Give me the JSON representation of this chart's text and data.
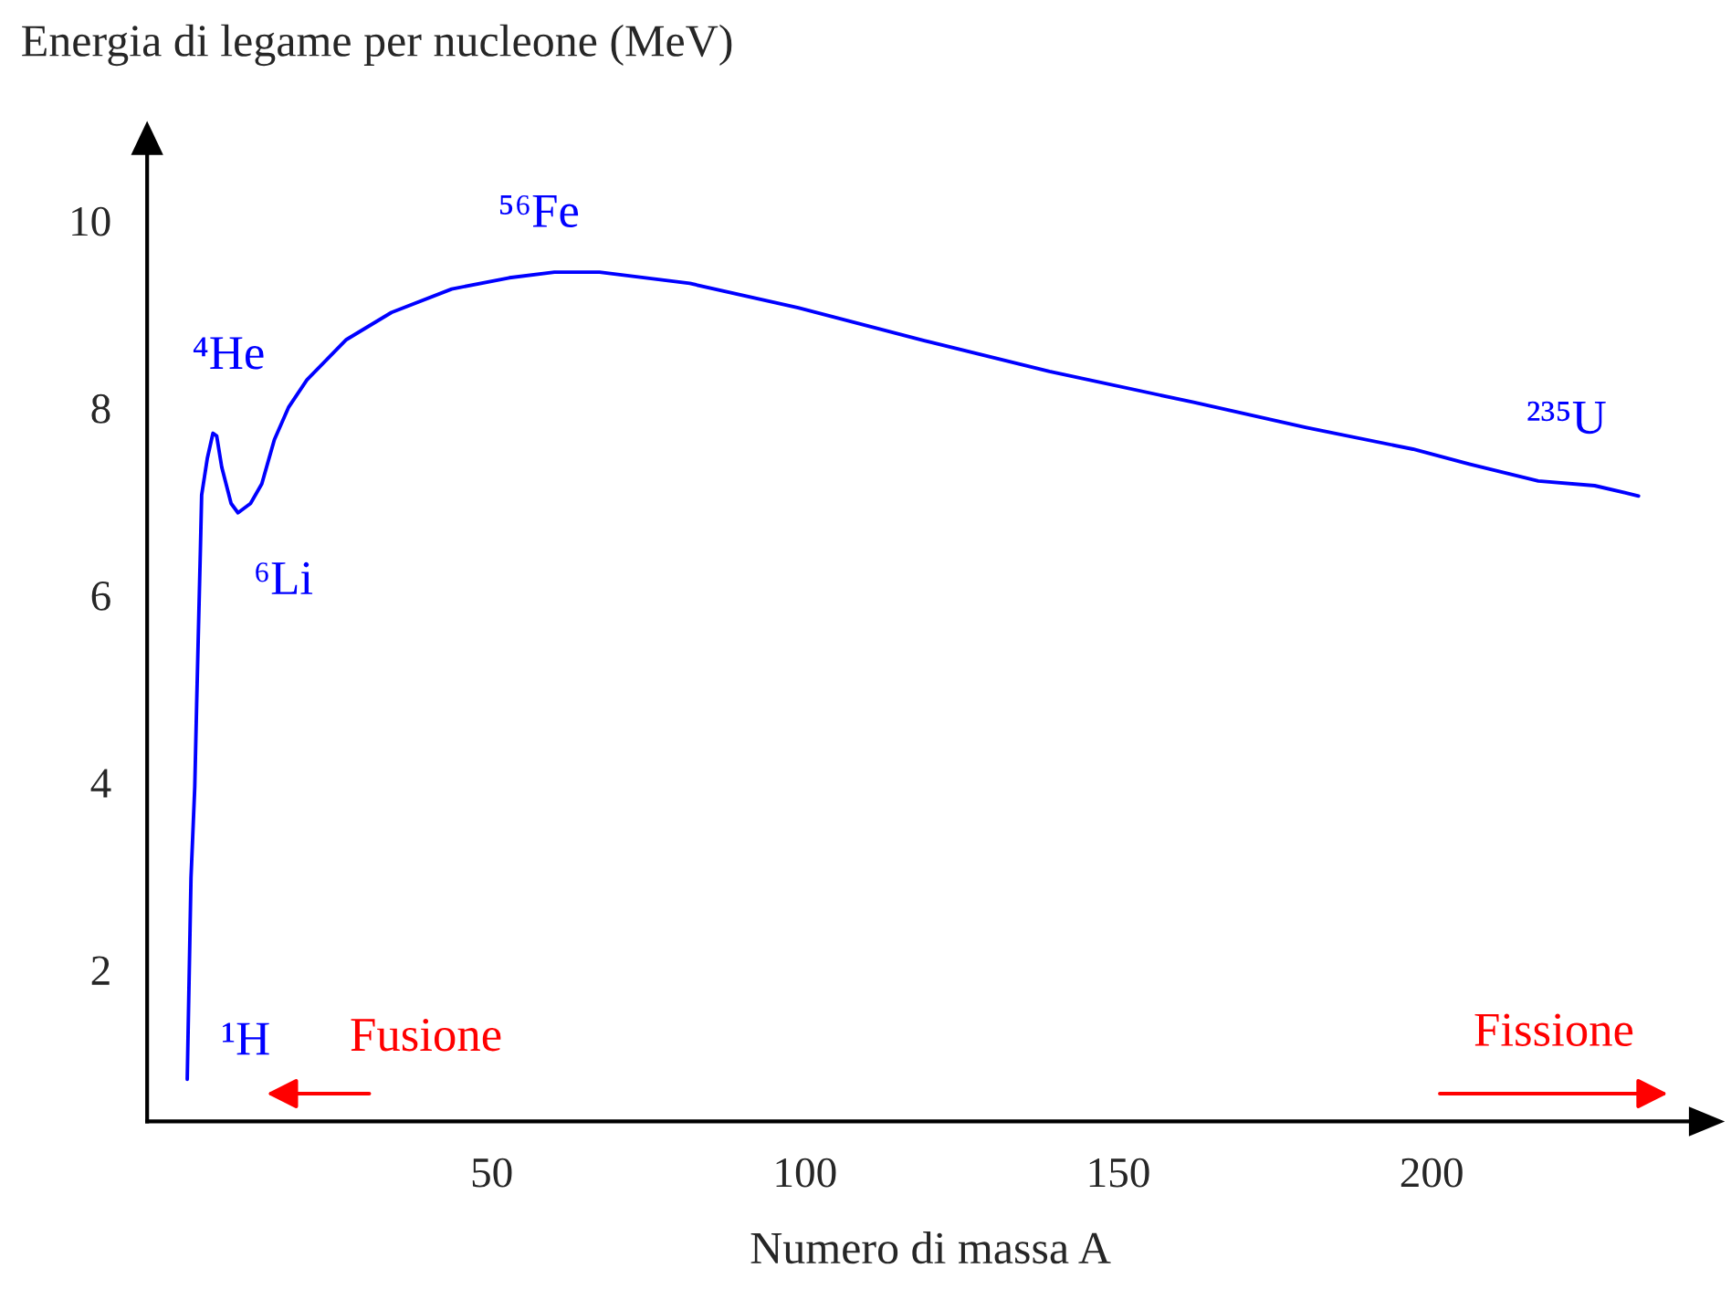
{
  "chart_data": {
    "type": "line",
    "xlabel": "Numero di massa A",
    "ylabel": "Energia di legame per nucleone (MeV)",
    "xlim": [
      -5,
      245
    ],
    "ylim": [
      0.38,
      10.98
    ],
    "xticks": [
      50,
      100,
      150,
      200
    ],
    "yticks": [
      2,
      4,
      6,
      8,
      10
    ],
    "grid": false,
    "legend": false,
    "marker": "none",
    "line_style": "solid",
    "series": [
      {
        "color": "#0000ff",
        "x": [
          1.4,
          2.0,
          2.6,
          2.9,
          3.5,
          3.7,
          4.6,
          5.5,
          6.1,
          6.9,
          8.4,
          9.5,
          11.5,
          13.3,
          15.3,
          17.6,
          20.5,
          26.8,
          34.0,
          43.6,
          52.8,
          60,
          67.2,
          81.6,
          98.9,
          119,
          139,
          162,
          180,
          197,
          206,
          217,
          226,
          233
        ],
        "values": [
          0.83,
          2.98,
          3.95,
          4.83,
          6.49,
          7.07,
          7.46,
          7.73,
          7.7,
          7.37,
          6.98,
          6.88,
          6.98,
          7.19,
          7.66,
          8.01,
          8.3,
          8.73,
          9.02,
          9.27,
          9.39,
          9.45,
          9.45,
          9.33,
          9.07,
          8.72,
          8.39,
          8.06,
          7.79,
          7.56,
          7.4,
          7.22,
          7.17,
          7.06
        ]
      }
    ],
    "annotations": [
      "⁴He",
      "⁶Li",
      "⁵⁶Fe",
      "²³⁵U",
      "¹H",
      "Fusione",
      "Fissione"
    ]
  }
}
